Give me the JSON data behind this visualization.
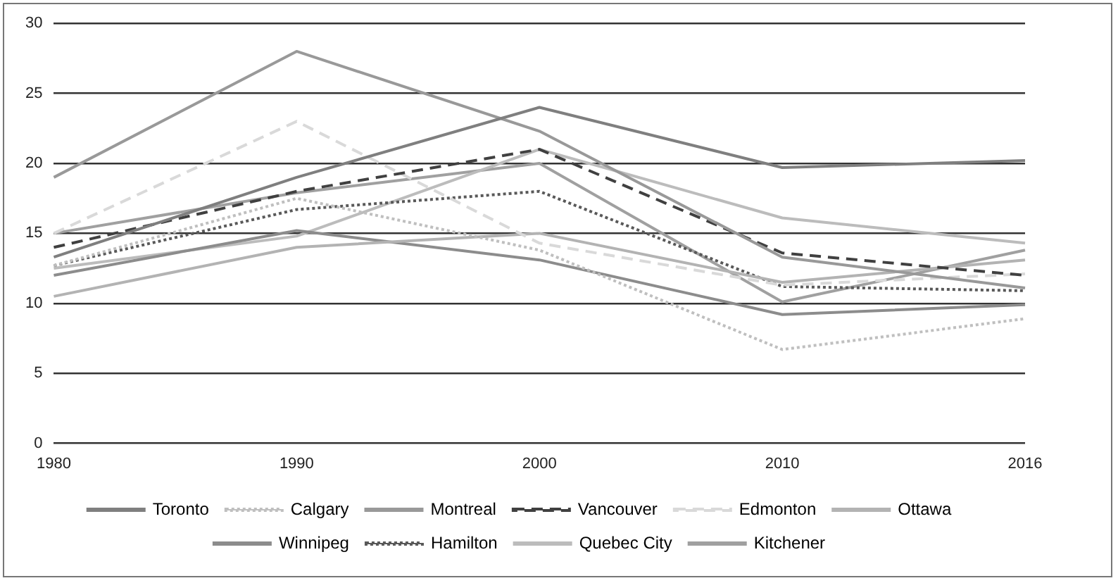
{
  "chart_data": {
    "type": "line",
    "categories": [
      "1980",
      "1990",
      "2000",
      "2010",
      "2016"
    ],
    "series": [
      {
        "name": "Toronto",
        "color": "#7f7f7f",
        "line_style": "solid",
        "values": [
          13.3,
          19,
          24,
          19.7,
          20.2
        ]
      },
      {
        "name": "Calgary",
        "color": "#bfbfbf",
        "line_style": "dotted",
        "values": [
          12.7,
          17.5,
          13.8,
          6.7,
          8.9
        ]
      },
      {
        "name": "Montreal",
        "color": "#999999",
        "line_style": "solid",
        "values": [
          19,
          28,
          22.3,
          13.3,
          11.1
        ]
      },
      {
        "name": "Vancouver",
        "color": "#404040",
        "line_style": "dashed",
        "values": [
          14,
          18,
          21,
          13.6,
          12
        ]
      },
      {
        "name": "Edmonton",
        "color": "#d9d9d9",
        "line_style": "dashed",
        "values": [
          15,
          23,
          14.3,
          11.3,
          12.1
        ]
      },
      {
        "name": "Ottawa",
        "color": "#b3b3b3",
        "line_style": "solid",
        "values": [
          10.5,
          14,
          15,
          11.5,
          13.1
        ]
      },
      {
        "name": "Winnipeg",
        "color": "#8c8c8c",
        "line_style": "solid",
        "values": [
          12,
          15.2,
          13.1,
          9.2,
          9.9
        ]
      },
      {
        "name": "Hamilton",
        "color": "#595959",
        "line_style": "dotted",
        "values": [
          12.7,
          16.7,
          18,
          11.2,
          10.9
        ]
      },
      {
        "name": "Quebec City",
        "color": "#bcbcbc",
        "line_style": "solid",
        "values": [
          12.5,
          14.8,
          21,
          16.1,
          14.3
        ]
      },
      {
        "name": "Kitchener",
        "color": "#a0a0a0",
        "line_style": "solid",
        "values": [
          15,
          17.9,
          20,
          10.1,
          13.8
        ]
      }
    ],
    "ylim": [
      0,
      30
    ],
    "yticks": [
      0,
      5,
      10,
      15,
      20,
      25,
      30
    ],
    "grid": "y",
    "legend": "bottom",
    "marker": "none"
  }
}
